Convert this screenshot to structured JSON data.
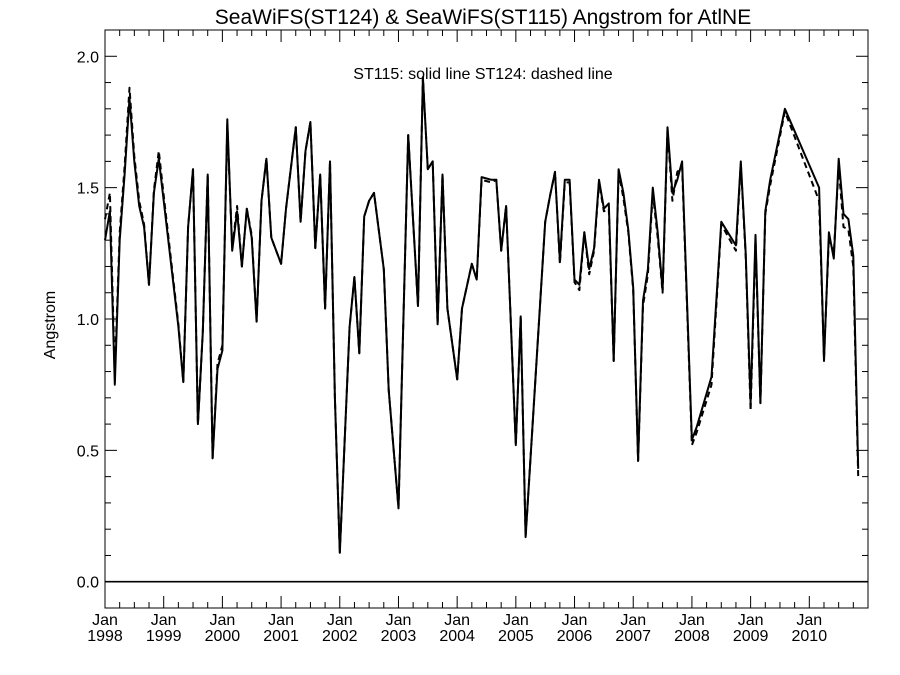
{
  "chart_data": {
    "type": "line",
    "title": "SeaWiFS(ST124) & SeaWiFS(ST115)  Angstrom for AtlNE",
    "annotation": "ST115: solid line   ST124: dashed line",
    "xlabel": "",
    "ylabel": "Angstrom",
    "ylim": [
      -0.1,
      2.1
    ],
    "xlim": [
      "1998-01",
      "2011-01"
    ],
    "yticks": [
      "0.0",
      "0.5",
      "1.0",
      "1.5",
      "2.0"
    ],
    "yticks_values": [
      0.0,
      0.5,
      1.0,
      1.5,
      2.0
    ],
    "xticks_month": [
      "Jan",
      "Jan",
      "Jan",
      "Jan",
      "Jan",
      "Jan",
      "Jan",
      "Jan",
      "Jan",
      "Jan",
      "Jan",
      "Jan",
      "Jan"
    ],
    "xticks_year": [
      "1998",
      "1999",
      "2000",
      "2001",
      "2002",
      "2003",
      "2004",
      "2005",
      "2006",
      "2007",
      "2008",
      "2009",
      "2010"
    ],
    "reference_line_y": 0.0,
    "grid": false,
    "series": [
      {
        "name": "ST115",
        "style": "solid",
        "color": "#000000",
        "points": [
          [
            "1998-01",
            1.3
          ],
          [
            "1998-02",
            1.41
          ],
          [
            "1998-03",
            0.75
          ],
          [
            "1998-04",
            1.3
          ],
          [
            "1998-05",
            1.55
          ],
          [
            "1998-06",
            1.84
          ],
          [
            "1998-07",
            1.6
          ],
          [
            "1998-08",
            1.43
          ],
          [
            "1998-09",
            1.35
          ],
          [
            "1998-10",
            1.13
          ],
          [
            "1998-11",
            1.48
          ],
          [
            "1998-12",
            1.61
          ],
          [
            "1999-01",
            1.45
          ],
          [
            "1999-04",
            0.97
          ],
          [
            "1999-05",
            0.76
          ],
          [
            "1999-06",
            1.35
          ],
          [
            "1999-07",
            1.57
          ],
          [
            "1999-08",
            0.6
          ],
          [
            "1999-09",
            0.95
          ],
          [
            "1999-10",
            1.55
          ],
          [
            "1999-11",
            0.47
          ],
          [
            "1999-12",
            0.81
          ],
          [
            "2000-01",
            0.88
          ],
          [
            "2000-02",
            1.76
          ],
          [
            "2000-03",
            1.26
          ],
          [
            "2000-04",
            1.41
          ],
          [
            "2000-05",
            1.2
          ],
          [
            "2000-06",
            1.42
          ],
          [
            "2000-07",
            1.31
          ],
          [
            "2000-08",
            0.99
          ],
          [
            "2000-09",
            1.45
          ],
          [
            "2000-10",
            1.61
          ],
          [
            "2000-11",
            1.31
          ],
          [
            "2001-01",
            1.21
          ],
          [
            "2001-02",
            1.42
          ],
          [
            "2001-04",
            1.73
          ],
          [
            "2001-05",
            1.37
          ],
          [
            "2001-06",
            1.64
          ],
          [
            "2001-07",
            1.75
          ],
          [
            "2001-08",
            1.27
          ],
          [
            "2001-09",
            1.55
          ],
          [
            "2001-10",
            1.04
          ],
          [
            "2001-11",
            1.6
          ],
          [
            "2001-12",
            0.7
          ],
          [
            "2002-01",
            0.11
          ],
          [
            "2002-03",
            0.97
          ],
          [
            "2002-04",
            1.16
          ],
          [
            "2002-05",
            0.87
          ],
          [
            "2002-06",
            1.39
          ],
          [
            "2002-07",
            1.45
          ],
          [
            "2002-08",
            1.48
          ],
          [
            "2002-10",
            1.19
          ],
          [
            "2002-11",
            0.73
          ],
          [
            "2003-01",
            0.28
          ],
          [
            "2003-03",
            1.7
          ],
          [
            "2003-05",
            1.05
          ],
          [
            "2003-06",
            1.92
          ],
          [
            "2003-07",
            1.57
          ],
          [
            "2003-08",
            1.6
          ],
          [
            "2003-09",
            0.98
          ],
          [
            "2003-10",
            1.55
          ],
          [
            "2003-11",
            1.04
          ],
          [
            "2004-01",
            0.77
          ],
          [
            "2004-02",
            1.04
          ],
          [
            "2004-04",
            1.21
          ],
          [
            "2004-05",
            1.15
          ],
          [
            "2004-06",
            1.54
          ],
          [
            "2004-08",
            1.53
          ],
          [
            "2004-09",
            1.53
          ],
          [
            "2004-10",
            1.26
          ],
          [
            "2004-11",
            1.43
          ],
          [
            "2005-01",
            0.52
          ],
          [
            "2005-02",
            1.01
          ],
          [
            "2005-03",
            0.17
          ],
          [
            "2005-07",
            1.37
          ],
          [
            "2005-08",
            1.47
          ],
          [
            "2005-09",
            1.56
          ],
          [
            "2005-10",
            1.22
          ],
          [
            "2005-11",
            1.53
          ],
          [
            "2005-12",
            1.53
          ],
          [
            "2006-01",
            1.15
          ],
          [
            "2006-02",
            1.13
          ],
          [
            "2006-03",
            1.33
          ],
          [
            "2006-04",
            1.19
          ],
          [
            "2006-05",
            1.27
          ],
          [
            "2006-06",
            1.53
          ],
          [
            "2006-07",
            1.42
          ],
          [
            "2006-08",
            1.44
          ],
          [
            "2006-09",
            0.84
          ],
          [
            "2006-10",
            1.57
          ],
          [
            "2006-11",
            1.48
          ],
          [
            "2006-12",
            1.34
          ],
          [
            "2007-01",
            1.12
          ],
          [
            "2007-02",
            0.46
          ],
          [
            "2007-03",
            1.07
          ],
          [
            "2007-04",
            1.19
          ],
          [
            "2007-05",
            1.5
          ],
          [
            "2007-06",
            1.33
          ],
          [
            "2007-07",
            1.11
          ],
          [
            "2007-08",
            1.73
          ],
          [
            "2007-09",
            1.48
          ],
          [
            "2007-10",
            1.53
          ],
          [
            "2007-11",
            1.6
          ],
          [
            "2008-01",
            0.54
          ],
          [
            "2008-02",
            0.59
          ],
          [
            "2008-05",
            0.78
          ],
          [
            "2008-07",
            1.37
          ],
          [
            "2008-10",
            1.28
          ],
          [
            "2008-11",
            1.6
          ],
          [
            "2008-12",
            1.25
          ],
          [
            "2009-01",
            0.68
          ],
          [
            "2009-02",
            1.32
          ],
          [
            "2009-03",
            0.68
          ],
          [
            "2009-04",
            1.41
          ],
          [
            "2009-05",
            1.53
          ],
          [
            "2009-08",
            1.8
          ],
          [
            "2010-03",
            1.5
          ],
          [
            "2010-04",
            0.84
          ],
          [
            "2010-05",
            1.33
          ],
          [
            "2010-06",
            1.23
          ],
          [
            "2010-07",
            1.61
          ],
          [
            "2010-08",
            1.4
          ],
          [
            "2010-09",
            1.38
          ],
          [
            "2010-10",
            1.24
          ],
          [
            "2010-11",
            0.43
          ]
        ]
      },
      {
        "name": "ST124",
        "style": "dashed",
        "color": "#000000",
        "points": [
          [
            "1998-01",
            1.38
          ],
          [
            "1998-02",
            1.48
          ],
          [
            "1998-03",
            0.79
          ],
          [
            "1998-04",
            1.33
          ],
          [
            "1998-05",
            1.58
          ],
          [
            "1998-06",
            1.88
          ],
          [
            "1998-07",
            1.62
          ],
          [
            "1998-08",
            1.45
          ],
          [
            "1998-09",
            1.36
          ],
          [
            "1998-10",
            1.13
          ],
          [
            "1998-11",
            1.49
          ],
          [
            "1998-12",
            1.64
          ],
          [
            "1999-01",
            1.47
          ],
          [
            "1999-04",
            0.98
          ],
          [
            "1999-05",
            0.76
          ],
          [
            "1999-06",
            1.35
          ],
          [
            "1999-07",
            1.57
          ],
          [
            "1999-08",
            0.6
          ],
          [
            "1999-09",
            0.95
          ],
          [
            "1999-10",
            1.55
          ],
          [
            "1999-11",
            0.47
          ],
          [
            "1999-12",
            0.83
          ],
          [
            "2000-01",
            0.9
          ],
          [
            "2000-02",
            1.74
          ],
          [
            "2000-03",
            1.27
          ],
          [
            "2000-04",
            1.43
          ],
          [
            "2000-05",
            1.2
          ],
          [
            "2000-06",
            1.42
          ],
          [
            "2000-07",
            1.32
          ],
          [
            "2000-08",
            0.99
          ],
          [
            "2000-09",
            1.45
          ],
          [
            "2000-10",
            1.61
          ],
          [
            "2000-11",
            1.31
          ],
          [
            "2001-01",
            1.21
          ],
          [
            "2001-02",
            1.42
          ],
          [
            "2001-04",
            1.73
          ],
          [
            "2001-05",
            1.37
          ],
          [
            "2001-06",
            1.64
          ],
          [
            "2001-07",
            1.75
          ],
          [
            "2001-08",
            1.27
          ],
          [
            "2001-09",
            1.55
          ],
          [
            "2001-10",
            1.04
          ],
          [
            "2001-11",
            1.6
          ],
          [
            "2001-12",
            0.7
          ],
          [
            "2002-01",
            0.11
          ],
          [
            "2002-03",
            0.97
          ],
          [
            "2002-04",
            1.16
          ],
          [
            "2002-05",
            0.87
          ],
          [
            "2002-06",
            1.39
          ],
          [
            "2002-07",
            1.45
          ],
          [
            "2002-08",
            1.48
          ],
          [
            "2002-10",
            1.19
          ],
          [
            "2002-11",
            0.73
          ],
          [
            "2003-01",
            0.28
          ],
          [
            "2003-03",
            1.7
          ],
          [
            "2003-05",
            1.05
          ],
          [
            "2003-06",
            1.92
          ],
          [
            "2003-07",
            1.57
          ],
          [
            "2003-08",
            1.6
          ],
          [
            "2003-09",
            0.98
          ],
          [
            "2003-10",
            1.55
          ],
          [
            "2003-11",
            1.04
          ],
          [
            "2004-01",
            0.77
          ],
          [
            "2004-02",
            1.04
          ],
          [
            "2004-04",
            1.21
          ],
          [
            "2004-05",
            1.15
          ],
          [
            "2004-06",
            1.53
          ],
          [
            "2004-08",
            1.52
          ],
          [
            "2004-09",
            1.53
          ],
          [
            "2004-10",
            1.26
          ],
          [
            "2004-11",
            1.43
          ],
          [
            "2005-01",
            0.52
          ],
          [
            "2005-02",
            1.01
          ],
          [
            "2005-03",
            0.17
          ],
          [
            "2005-07",
            1.37
          ],
          [
            "2005-08",
            1.47
          ],
          [
            "2005-09",
            1.56
          ],
          [
            "2005-10",
            1.21
          ],
          [
            "2005-11",
            1.52
          ],
          [
            "2005-12",
            1.52
          ],
          [
            "2006-01",
            1.14
          ],
          [
            "2006-02",
            1.11
          ],
          [
            "2006-03",
            1.33
          ],
          [
            "2006-04",
            1.17
          ],
          [
            "2006-05",
            1.26
          ],
          [
            "2006-06",
            1.52
          ],
          [
            "2006-07",
            1.41
          ],
          [
            "2006-08",
            1.42
          ],
          [
            "2006-09",
            0.84
          ],
          [
            "2006-10",
            1.56
          ],
          [
            "2006-11",
            1.46
          ],
          [
            "2006-12",
            1.33
          ],
          [
            "2007-01",
            1.11
          ],
          [
            "2007-02",
            0.46
          ],
          [
            "2007-03",
            1.05
          ],
          [
            "2007-04",
            1.17
          ],
          [
            "2007-05",
            1.48
          ],
          [
            "2007-06",
            1.31
          ],
          [
            "2007-07",
            1.1
          ],
          [
            "2007-08",
            1.72
          ],
          [
            "2007-09",
            1.45
          ],
          [
            "2007-10",
            1.56
          ],
          [
            "2007-11",
            1.58
          ],
          [
            "2008-01",
            0.52
          ],
          [
            "2008-02",
            0.57
          ],
          [
            "2008-05",
            0.75
          ],
          [
            "2008-07",
            1.36
          ],
          [
            "2008-10",
            1.26
          ],
          [
            "2008-11",
            1.59
          ],
          [
            "2008-12",
            1.24
          ],
          [
            "2009-01",
            0.65
          ],
          [
            "2009-02",
            1.3
          ],
          [
            "2009-03",
            0.68
          ],
          [
            "2009-04",
            1.4
          ],
          [
            "2009-05",
            1.51
          ],
          [
            "2009-08",
            1.79
          ],
          [
            "2010-03",
            1.45
          ],
          [
            "2010-04",
            0.85
          ],
          [
            "2010-05",
            1.31
          ],
          [
            "2010-06",
            1.25
          ],
          [
            "2010-07",
            1.58
          ],
          [
            "2010-08",
            1.35
          ],
          [
            "2010-09",
            1.34
          ],
          [
            "2010-10",
            1.2
          ],
          [
            "2010-11",
            0.4
          ]
        ]
      }
    ]
  }
}
